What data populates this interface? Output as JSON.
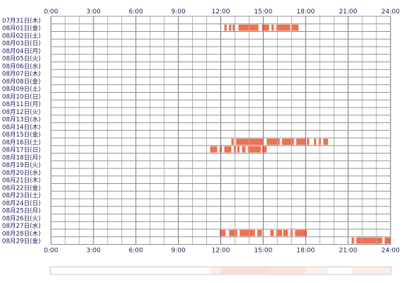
{
  "chart_data": {
    "type": "timeline",
    "x_unit": "time of day",
    "xlim": [
      "0:00",
      "24:00"
    ],
    "x_ticks": [
      "0:00",
      "3:00",
      "6:00",
      "9:00",
      "12:00",
      "15:00",
      "18:00",
      "21:00",
      "24:00"
    ],
    "rows": [
      {
        "label": "07月31日(木)",
        "intervals": []
      },
      {
        "label": "08月01日(金)",
        "intervals": [
          [
            "12:15",
            "12:25"
          ],
          [
            "12:35",
            "12:45"
          ],
          [
            "12:50",
            "13:00"
          ],
          [
            "13:15",
            "14:40"
          ],
          [
            "14:55",
            "15:25"
          ],
          [
            "15:35",
            "15:45"
          ],
          [
            "15:55",
            "16:55"
          ],
          [
            "17:00",
            "17:30"
          ]
        ]
      },
      {
        "label": "08月02日(土)",
        "intervals": []
      },
      {
        "label": "08月03日(日)",
        "intervals": []
      },
      {
        "label": "08月04日(月)",
        "intervals": []
      },
      {
        "label": "08月05日(火)",
        "intervals": []
      },
      {
        "label": "08月06日(水)",
        "intervals": []
      },
      {
        "label": "08月07日(木)",
        "intervals": []
      },
      {
        "label": "08月08日(金)",
        "intervals": []
      },
      {
        "label": "08月09日(土)",
        "intervals": []
      },
      {
        "label": "08月10日(日)",
        "intervals": []
      },
      {
        "label": "08月11日(月)",
        "intervals": []
      },
      {
        "label": "08月12日(火)",
        "intervals": []
      },
      {
        "label": "08月13日(水)",
        "intervals": []
      },
      {
        "label": "08月14日(木)",
        "intervals": []
      },
      {
        "label": "08月15日(金)",
        "intervals": []
      },
      {
        "label": "08月16日(土)",
        "intervals": [
          [
            "12:45",
            "12:55"
          ],
          [
            "13:05",
            "15:00"
          ],
          [
            "15:15",
            "16:10"
          ],
          [
            "16:20",
            "17:10"
          ],
          [
            "17:20",
            "18:00"
          ],
          [
            "18:05",
            "18:15"
          ],
          [
            "18:35",
            "18:45"
          ],
          [
            "18:55",
            "19:05"
          ],
          [
            "19:15",
            "19:35"
          ]
        ]
      },
      {
        "label": "08月17日(日)",
        "intervals": [
          [
            "11:15",
            "11:45"
          ],
          [
            "11:55",
            "12:05"
          ],
          [
            "12:15",
            "12:45"
          ],
          [
            "12:55",
            "13:05"
          ],
          [
            "13:10",
            "13:20"
          ],
          [
            "13:30",
            "13:45"
          ],
          [
            "13:55",
            "14:50"
          ],
          [
            "14:55",
            "15:15"
          ]
        ]
      },
      {
        "label": "08月18日(月)",
        "intervals": []
      },
      {
        "label": "08月19日(火)",
        "intervals": []
      },
      {
        "label": "08月20日(水)",
        "intervals": []
      },
      {
        "label": "08月21日(木)",
        "intervals": []
      },
      {
        "label": "08月22日(金)",
        "intervals": []
      },
      {
        "label": "08月23日(土)",
        "intervals": []
      },
      {
        "label": "08月24日(日)",
        "intervals": []
      },
      {
        "label": "08月25日(月)",
        "intervals": []
      },
      {
        "label": "08月26日(火)",
        "intervals": []
      },
      {
        "label": "08月27日(水)",
        "intervals": []
      },
      {
        "label": "08月28日(木)",
        "intervals": [
          [
            "11:55",
            "12:20"
          ],
          [
            "12:35",
            "13:10"
          ],
          [
            "13:20",
            "14:25"
          ],
          [
            "14:35",
            "14:55"
          ],
          [
            "15:30",
            "15:45"
          ],
          [
            "15:55",
            "16:20"
          ],
          [
            "16:25",
            "16:45"
          ],
          [
            "16:55",
            "17:05"
          ],
          [
            "17:15",
            "18:05"
          ]
        ]
      },
      {
        "label": "08月29日(金)",
        "intervals": [
          [
            "21:15",
            "21:25"
          ],
          [
            "21:35",
            "23:25"
          ],
          [
            "23:35",
            "24:00"
          ]
        ]
      }
    ],
    "grid": true,
    "bar_color": "#f07050",
    "grid_color": "#909090",
    "summary_strip_bands": [
      {
        "start": "11:15",
        "end": "12:00",
        "level": 0.3
      },
      {
        "start": "12:00",
        "end": "15:15",
        "level": 0.55
      },
      {
        "start": "15:15",
        "end": "18:00",
        "level": 0.45
      },
      {
        "start": "18:00",
        "end": "19:35",
        "level": 0.25
      },
      {
        "start": "21:15",
        "end": "24:00",
        "level": 0.3
      }
    ]
  }
}
